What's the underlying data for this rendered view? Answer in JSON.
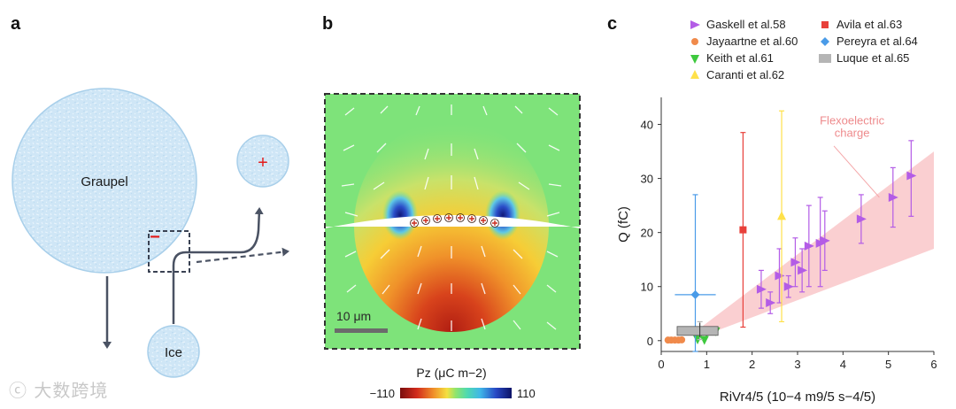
{
  "panel_labels": {
    "a": "a",
    "b": "b",
    "c": "c"
  },
  "panel_a": {
    "graupel_label": "Graupel",
    "ice_label": "Ice",
    "minus_sign": "−",
    "plus_sign": "+"
  },
  "panel_b": {
    "scale_label": "10 μm",
    "colorbar_title": "Pz (μC m−2)",
    "colorbar_min": "−110",
    "colorbar_max": "110",
    "colors": {
      "border": "#333333",
      "field_green": "#7ee37a",
      "positive_red": "#c92a1c",
      "negative_blue": "#1c2fa0"
    }
  },
  "chart_data": {
    "type": "scatter",
    "title": "",
    "xlabel": "RiVr4/5 (10−4 m9/5 s−4/5)",
    "ylabel": "Q (fC)",
    "xlim": [
      0,
      6
    ],
    "ylim": [
      -2,
      45
    ],
    "xticks": [
      0,
      1,
      2,
      3,
      4,
      5,
      6
    ],
    "yticks": [
      0,
      10,
      20,
      30,
      40
    ],
    "band_label": "Flexoelectric charge",
    "band": {
      "x": [
        0.8,
        6
      ],
      "upper_y": [
        2,
        35
      ],
      "lower_y": [
        0.5,
        17
      ]
    },
    "series": [
      {
        "name": "Gaskell et al.58",
        "marker": "triangle-right",
        "color": "#b35ce6",
        "points": [
          {
            "x": 2.2,
            "y": 9.5,
            "lo": 6,
            "hi": 13
          },
          {
            "x": 2.4,
            "y": 7.0,
            "lo": 5,
            "hi": 9
          },
          {
            "x": 2.6,
            "y": 12.0,
            "lo": 7,
            "hi": 17
          },
          {
            "x": 2.8,
            "y": 10.0,
            "lo": 8,
            "hi": 12
          },
          {
            "x": 2.95,
            "y": 14.5,
            "lo": 10,
            "hi": 19
          },
          {
            "x": 3.1,
            "y": 13.0,
            "lo": 9,
            "hi": 17
          },
          {
            "x": 3.25,
            "y": 17.5,
            "lo": 10,
            "hi": 25
          },
          {
            "x": 3.5,
            "y": 18.0,
            "lo": 10,
            "hi": 26.5
          },
          {
            "x": 3.6,
            "y": 18.5,
            "lo": 13,
            "hi": 24
          },
          {
            "x": 4.4,
            "y": 22.5,
            "lo": 18,
            "hi": 27
          },
          {
            "x": 5.1,
            "y": 26.5,
            "lo": 21,
            "hi": 32
          },
          {
            "x": 5.5,
            "y": 30.5,
            "lo": 23,
            "hi": 37
          }
        ]
      },
      {
        "name": "Jayaartne et al.60",
        "marker": "circle",
        "color": "#f08a4b",
        "points": [
          {
            "x": 0.15,
            "y": 0.1
          },
          {
            "x": 0.22,
            "y": 0.1
          },
          {
            "x": 0.3,
            "y": 0.1
          },
          {
            "x": 0.38,
            "y": 0.1
          },
          {
            "x": 0.45,
            "y": 0.15
          }
        ]
      },
      {
        "name": "Keith et al.61",
        "marker": "triangle-down",
        "color": "#3ec93e",
        "points": [
          {
            "x": 0.75,
            "y": 2.0
          },
          {
            "x": 1.0,
            "y": 1.5
          },
          {
            "x": 1.2,
            "y": 1.8
          },
          {
            "x": 0.8,
            "y": 0.3
          },
          {
            "x": 0.95,
            "y": 0.2
          }
        ]
      },
      {
        "name": "Caranti et al.62",
        "marker": "triangle-up",
        "color": "#ffe14a",
        "points": [
          {
            "x": 2.65,
            "y": 23.0,
            "lo": 3.5,
            "hi": 42.5
          }
        ]
      },
      {
        "name": "Avila et al.63",
        "marker": "square",
        "color": "#e8403a",
        "points": [
          {
            "x": 1.8,
            "y": 20.5,
            "lo": 2.5,
            "hi": 38.5
          }
        ]
      },
      {
        "name": "Pereyra et al.64",
        "marker": "diamond",
        "color": "#4a9be8",
        "points": [
          {
            "x": 0.75,
            "y": 8.5,
            "lo": -2,
            "hi": 27,
            "xlo": 0.3,
            "xhi": 1.2
          }
        ]
      },
      {
        "name": "Luque et al.65",
        "marker": "box",
        "color": "#b5b5b5",
        "points": [
          {
            "x": 0.85,
            "y": 1.8,
            "lo": 0.2,
            "hi": 3.5,
            "xlo": 0.35,
            "xhi": 1.25
          }
        ]
      }
    ]
  }
}
